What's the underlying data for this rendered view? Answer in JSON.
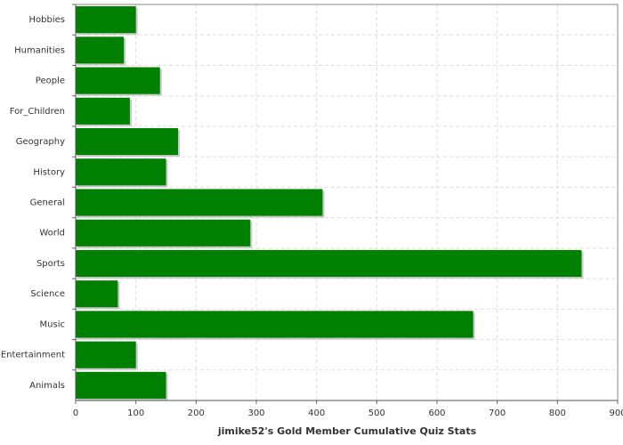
{
  "chart_data": {
    "type": "barh",
    "x_label": "jimike52's Gold Member Cumulative Quiz Stats",
    "categories": [
      "Hobbies",
      "Humanities",
      "People",
      "For_Children",
      "Geography",
      "History",
      "General",
      "World",
      "Sports",
      "Science",
      "Music",
      "Entertainment",
      "Animals"
    ],
    "values": [
      100,
      80,
      140,
      90,
      170,
      150,
      410,
      290,
      840,
      70,
      660,
      100,
      150
    ],
    "color": "#008000",
    "xlim": [
      0,
      900
    ],
    "xticks": [
      0,
      100,
      200,
      300,
      400,
      500,
      600,
      700,
      800,
      900
    ],
    "grid": true
  }
}
